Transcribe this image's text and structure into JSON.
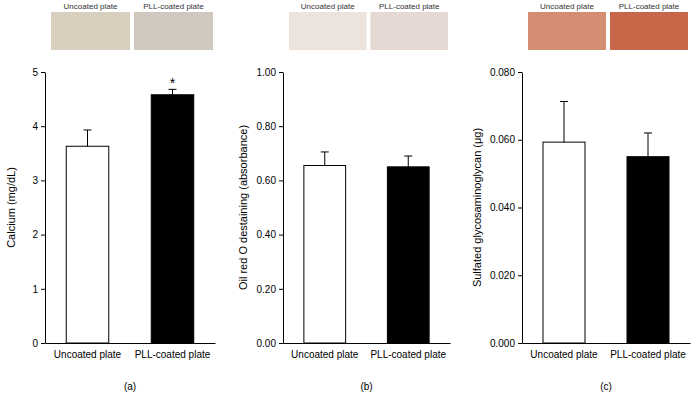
{
  "chart_data": [
    {
      "type": "bar",
      "title": "(a)",
      "y_label": "Calcium (mg/dL)",
      "image_labels": [
        "Uncoated plate",
        "PLL-coated plate"
      ],
      "categories": [
        "Uncoated plate",
        "PLL-coated plate"
      ],
      "values": [
        3.63,
        4.58
      ],
      "errors": [
        0.3,
        0.1
      ],
      "colors": [
        "#ffffff",
        "#000000"
      ],
      "ylim": [
        0,
        5
      ],
      "yticks": [
        0,
        1,
        2,
        3,
        4,
        5
      ],
      "annotations": [
        {
          "text": "*",
          "x": "PLL-coated plate"
        }
      ]
    },
    {
      "type": "bar",
      "title": "(b)",
      "y_label": "Oil red O destaining (absorbance)",
      "image_labels": [
        "Uncoated plate",
        "PLL-coated plate"
      ],
      "categories": [
        "Uncoated plate",
        "PLL-coated plate"
      ],
      "values": [
        0.655,
        0.65
      ],
      "errors": [
        0.05,
        0.04
      ],
      "colors": [
        "#ffffff",
        "#000000"
      ],
      "ylim": [
        0,
        1
      ],
      "yticks": [
        {
          "value": 0,
          "label": "0.00"
        },
        {
          "value": 0.2,
          "label": "0.20"
        },
        {
          "value": 0.4,
          "label": "0.40"
        },
        {
          "value": 0.6,
          "label": "0.60"
        },
        {
          "value": 0.8,
          "label": "0.80"
        },
        {
          "value": 1,
          "label": "1.00"
        }
      ]
    },
    {
      "type": "bar",
      "title": "(c)",
      "y_label": "Sulfated glycosaminoglycan (μg)",
      "image_labels": [
        "Uncoated plate",
        "PLL-coated plate"
      ],
      "categories": [
        "Uncoated plate",
        "PLL-coated plate"
      ],
      "values": [
        0.0593,
        0.055
      ],
      "errors": [
        0.012,
        0.007
      ],
      "colors": [
        "#ffffff",
        "#000000"
      ],
      "ylim": [
        0,
        0.08
      ],
      "yticks": [
        {
          "value": 0,
          "label": "0.000"
        },
        {
          "value": 0.02,
          "label": "0.020"
        },
        {
          "value": 0.04,
          "label": "0.040"
        },
        {
          "value": 0.06,
          "label": "0.060"
        },
        {
          "value": 0.08,
          "label": "0.080"
        }
      ]
    }
  ]
}
